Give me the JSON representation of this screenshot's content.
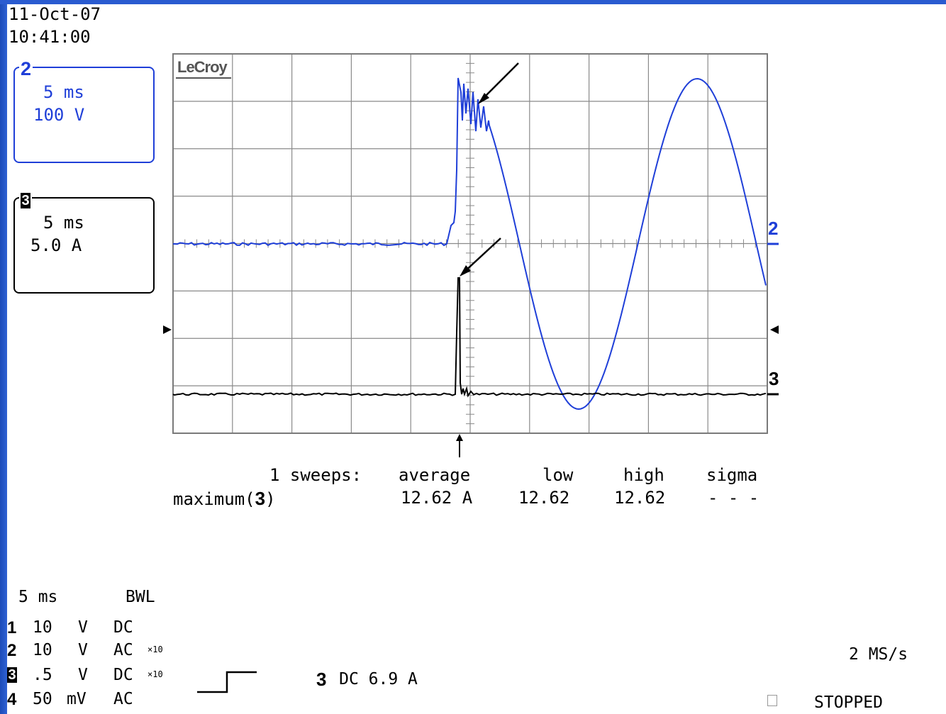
{
  "timestamp": {
    "date": "11-Oct-07",
    "time": "10:41:00"
  },
  "channel2": {
    "number": "2",
    "timebase": "5 ms",
    "scale": "100 V"
  },
  "channel3": {
    "number": "3",
    "timebase": "5 ms",
    "scale": "5.0 A"
  },
  "brand": "LeCroy",
  "trace_labels": {
    "ch2": "2",
    "ch3": "3"
  },
  "measurement": {
    "sweeps": "1 sweeps:",
    "param": "maximum(",
    "param_channel": "3",
    "param_close": ")",
    "headers": [
      "average",
      "low",
      "high",
      "sigma"
    ],
    "values": [
      "12.62 A",
      "12.62",
      "12.62",
      "- - -"
    ]
  },
  "acquisition": {
    "timebase": "5 ms",
    "bwl": "BWL",
    "channels": [
      {
        "num": "1",
        "volts": "10",
        "unit": "V",
        "coupling": "DC",
        "probe": ""
      },
      {
        "num": "2",
        "volts": "10",
        "unit": "V",
        "coupling": "AC",
        "probe": "×10"
      },
      {
        "num": "3",
        "volts": ".5",
        "unit": "V",
        "coupling": "DC",
        "probe": "×10"
      },
      {
        "num": "4",
        "volts": "50",
        "unit": "mV",
        "coupling": "AC",
        "probe": ""
      }
    ],
    "trigger": {
      "channel": "3",
      "setting": "DC 6.9 A"
    },
    "sample_rate": "2 MS/s",
    "status": "STOPPED"
  },
  "colors": {
    "ch2": "#1f3fd8",
    "ch3": "#000000",
    "grid": "#8a8a8a",
    "frame": "#2a5bd0"
  }
}
